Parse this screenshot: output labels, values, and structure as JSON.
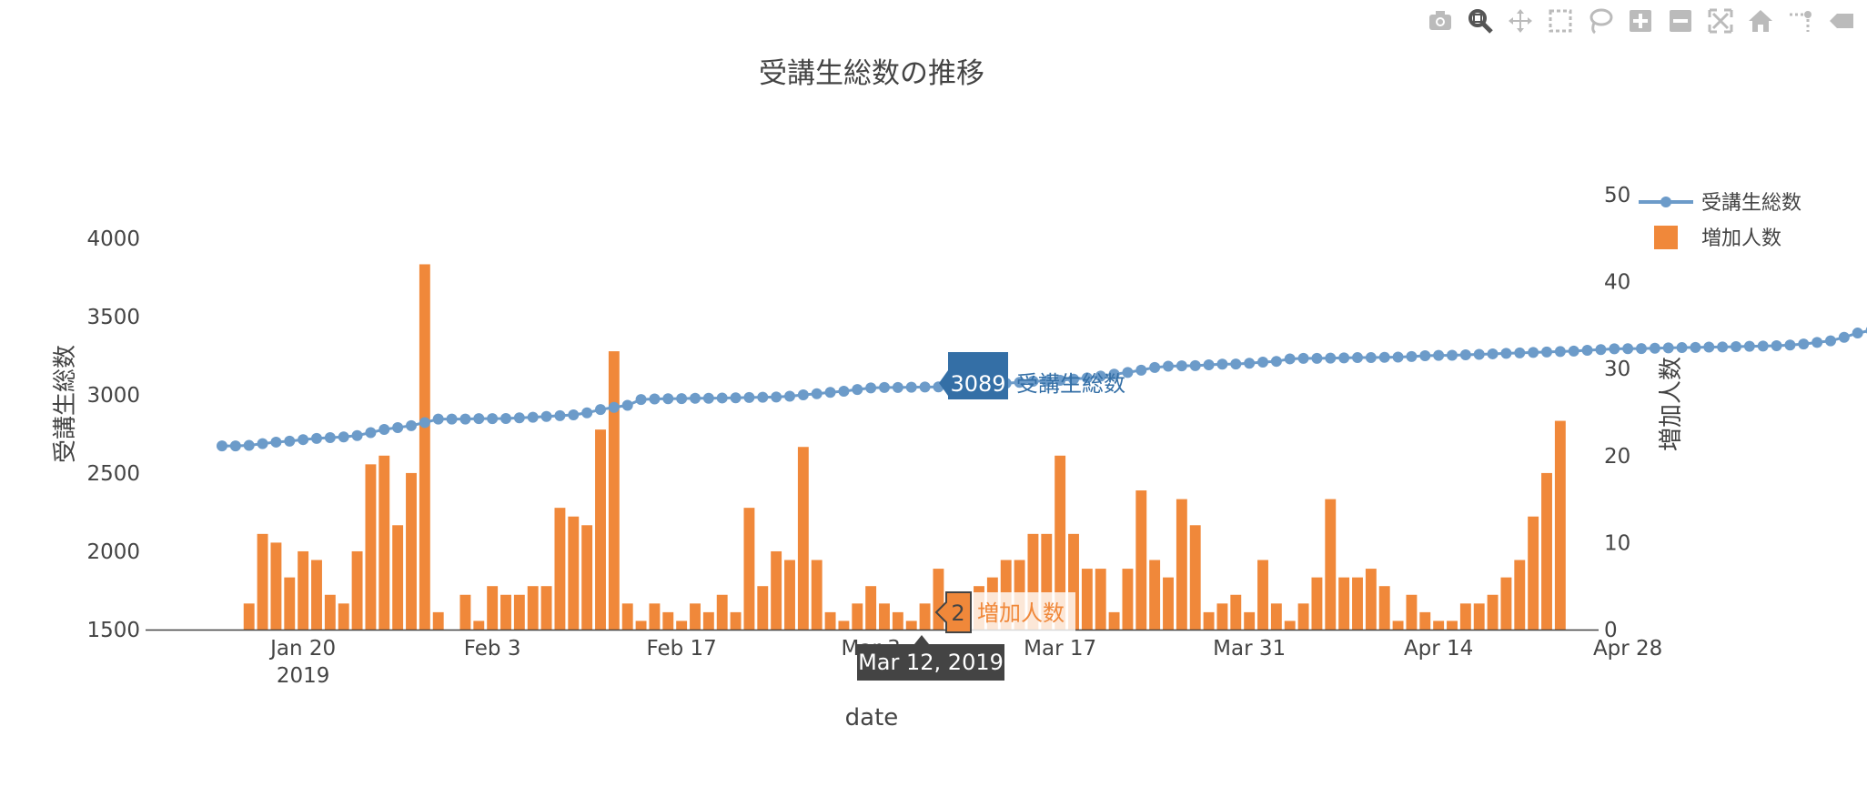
{
  "modebar": {
    "icons": [
      "camera-icon",
      "zoom-icon",
      "pan-icon",
      "box-select-icon",
      "lasso-icon",
      "zoom-in-icon",
      "zoom-out-icon",
      "autoscale-icon",
      "reset-axes-icon",
      "spike-lines-icon",
      "hover-closest-icon"
    ]
  },
  "chart_data": {
    "type": "bar",
    "title": "受講生総数の推移",
    "xlabel": "date",
    "ylabel": "受講生総数",
    "y2label": "増加人数",
    "x_ticks": [
      "Jan 20",
      "Feb 3",
      "Feb 17",
      "Mar 3",
      "Mar 17",
      "Mar 31",
      "Apr 14",
      "Apr 28"
    ],
    "x_year_label": "2019",
    "y_ticks": [
      "1500",
      "2000",
      "2500",
      "3000",
      "3500",
      "4000"
    ],
    "y2_ticks": [
      "0",
      "10",
      "20",
      "30",
      "40",
      "50"
    ],
    "ylim": [
      1500,
      4000
    ],
    "y2lim": [
      0,
      50
    ],
    "start_date": "2019-01-14",
    "legend_position": "top-right",
    "series": [
      {
        "name": "受講生総数",
        "kind": "line",
        "axis": "y",
        "color": "#6c9bc9",
        "values": [
          2674,
          2674,
          2677,
          2688,
          2698,
          2704,
          2714,
          2722,
          2727,
          2731,
          2740,
          2759,
          2779,
          2791,
          2803,
          2823,
          2845,
          2845,
          2845,
          2848,
          2848,
          2849,
          2853,
          2857,
          2862,
          2867,
          2872,
          2885,
          2906,
          2920,
          2933,
          2970,
          2974,
          2975,
          2976,
          2978,
          2978,
          2980,
          2981,
          2983,
          2985,
          2986,
          2991,
          3000,
          3007,
          3016,
          3023,
          3034,
          3044,
          3047,
          3047,
          3049,
          3050,
          3051,
          3054,
          3058,
          3062,
          3068,
          3074,
          3080,
          3087,
          3089,
          3093,
          3100,
          3108,
          3120,
          3132,
          3143,
          3158,
          3175,
          3183,
          3185,
          3187,
          3192,
          3196,
          3197,
          3202,
          3209,
          3214,
          3230,
          3233,
          3233,
          3235,
          3236,
          3238,
          3238,
          3240,
          3241,
          3245,
          3250,
          3252,
          3253,
          3256,
          3259,
          3262,
          3265,
          3268,
          3271,
          3274,
          3277,
          3280,
          3285,
          3289,
          3294,
          3295,
          3296,
          3298,
          3300,
          3302,
          3303,
          3305,
          3306,
          3308,
          3310,
          3312,
          3314,
          3318,
          3325,
          3335,
          3345,
          3368,
          3395,
          3412
        ]
      },
      {
        "name": "増加人数",
        "kind": "bar",
        "axis": "y2",
        "color": "#f0883a",
        "values": [
          0,
          0,
          3,
          11,
          10,
          6,
          9,
          8,
          4,
          3,
          9,
          19,
          20,
          12,
          18,
          42,
          2,
          0,
          4,
          1,
          5,
          4,
          4,
          5,
          5,
          14,
          13,
          12,
          23,
          32,
          3,
          1,
          3,
          2,
          1,
          3,
          2,
          4,
          2,
          14,
          5,
          9,
          8,
          21,
          8,
          2,
          1,
          3,
          5,
          3,
          2,
          1,
          3,
          7,
          2,
          2,
          5,
          6,
          8,
          8,
          11,
          11,
          20,
          11,
          7,
          7,
          2,
          7,
          16,
          8,
          6,
          15,
          12,
          2,
          3,
          4,
          2,
          8,
          3,
          1,
          3,
          6,
          15,
          6,
          6,
          7,
          5,
          1,
          4,
          2,
          1,
          1,
          3,
          3,
          4,
          6,
          8,
          13,
          18,
          24
        ]
      }
    ],
    "hover": {
      "date_label": "Mar 12, 2019",
      "line_value": "3089",
      "line_name": "受講生総数",
      "bar_value": "2",
      "bar_name": "増加人数"
    }
  }
}
